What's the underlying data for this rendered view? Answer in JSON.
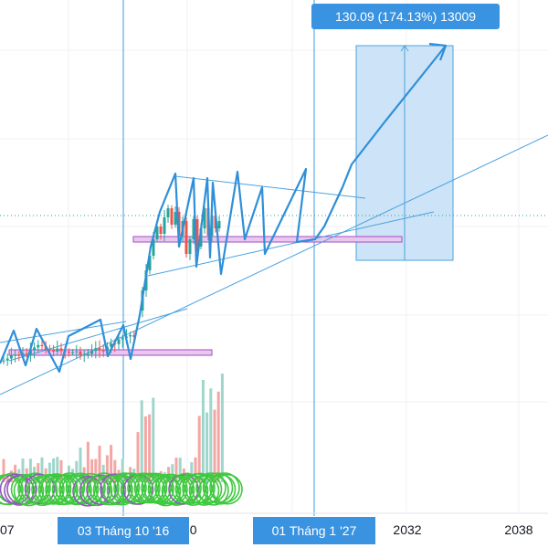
{
  "measure_label": "130.09 (174.13%) 13009",
  "time_axis": {
    "left_edge_label": "07",
    "crosshair_label_1": "03 Tháng 10 '16",
    "partial_label": "20",
    "crosshair_label_2": "01 Tháng 1 '27",
    "year_2032": "2032",
    "year_2038": "2038"
  },
  "colors": {
    "background": "#ffffff",
    "grid": "#eef0f4",
    "up": "#26a69a",
    "down": "#ef5350",
    "drawing_blue": "#2f8fd8",
    "thin_line": "#4aa3df",
    "crosshair": "#3d9be0",
    "label_blue": "#3993e0",
    "measure_fill": "#cde3f7",
    "highlight_fill": "#e9c8f0",
    "highlight_stroke": "#a64bc2",
    "vol_up": "#9fd6cc",
    "vol_down": "#f3a7a5",
    "circle_green": "#3fc93f",
    "dotted_price": "#26a69a"
  }
}
